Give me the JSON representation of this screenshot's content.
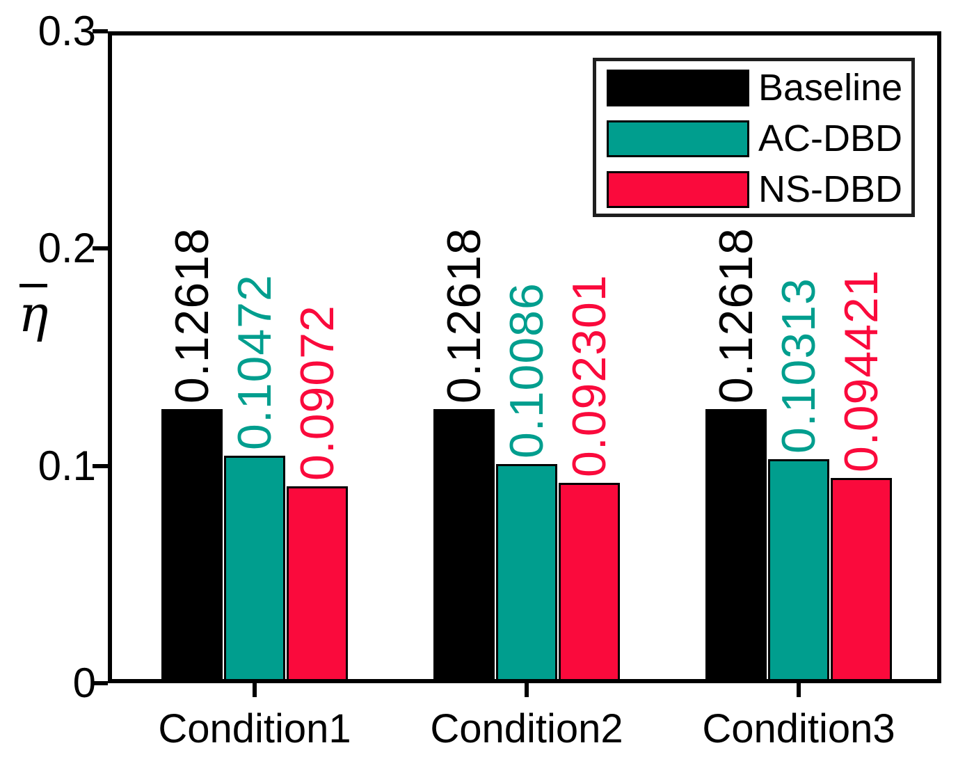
{
  "chart_data": {
    "type": "bar",
    "title": "",
    "categories": [
      "Condition1",
      "Condition2",
      "Condition3"
    ],
    "series": [
      {
        "name": "Baseline",
        "color": "#000000",
        "values": [
          0.12618,
          0.12618,
          0.12618
        ],
        "value_labels": [
          "0.12618",
          "0.12618",
          "0.12618"
        ]
      },
      {
        "name": "AC-DBD",
        "color": "#009e8e",
        "values": [
          0.10472,
          0.10086,
          0.10313
        ],
        "value_labels": [
          "0.10472",
          "0.10086",
          "0.10313"
        ]
      },
      {
        "name": "NS-DBD",
        "color": "#fa0a3c",
        "values": [
          0.09072,
          0.092301,
          0.094421
        ],
        "value_labels": [
          "0.09072",
          "0.092301",
          "0.094421"
        ]
      }
    ],
    "xlabel": "",
    "ylabel": "η̄",
    "ylabel_char": "η",
    "ylim": [
      0,
      0.3
    ],
    "yticks": [
      0,
      0.1,
      0.2,
      0.3
    ],
    "ytick_labels": [
      "0",
      "0.1",
      "0.2",
      "0.3"
    ],
    "legend": {
      "position": "top-right",
      "entries": [
        "Baseline",
        "AC-DBD",
        "NS-DBD"
      ]
    },
    "grid": false,
    "value_label_rotation_deg": 90,
    "axis_color": "#000000",
    "background_color": "#ffffff"
  }
}
